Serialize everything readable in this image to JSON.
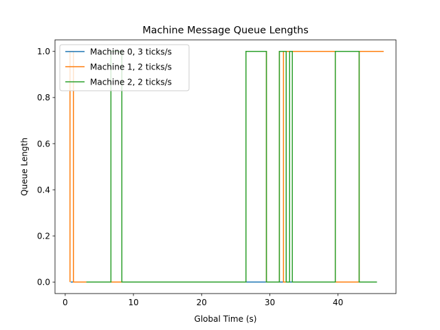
{
  "chart_data": {
    "type": "line",
    "step": true,
    "title": "Machine Message Queue Lengths",
    "xlabel": "Global Time (s)",
    "ylabel": "Queue Length",
    "xlim": [
      -1.5,
      48.5
    ],
    "ylim": [
      -0.05,
      1.05
    ],
    "xticks": [
      0,
      10,
      20,
      30,
      40
    ],
    "yticks": [
      0.0,
      0.2,
      0.4,
      0.6,
      0.8,
      1.0
    ],
    "xtick_labels": [
      "0",
      "10",
      "20",
      "30",
      "40"
    ],
    "ytick_labels": [
      "0.0",
      "0.2",
      "0.4",
      "0.6",
      "0.8",
      "1.0"
    ],
    "grid": false,
    "legend_position": "upper left",
    "series": [
      {
        "name": "Machine 0, 3 ticks/s",
        "color": "#1f77b4",
        "x": [
          0.8,
          45.7
        ],
        "y": [
          0,
          0
        ]
      },
      {
        "name": "Machine 1, 2 ticks/s",
        "color": "#ff7f0e",
        "x": [
          0.7,
          0.7,
          1.2,
          1.2,
          46.7
        ],
        "y": [
          0,
          1,
          1,
          0,
          0
        ],
        "segments": [
          {
            "x": [
              0.7,
              0.7,
              1.2,
              1.2,
              26.5,
              26.5,
              29.5,
              29.5,
              31.4,
              31.4,
              32.0,
              32.0,
              32.4,
              32.4,
              39.6,
              39.6,
              43.1,
              43.1,
              46.7
            ],
            "y": [
              0,
              1,
              1,
              0,
              0,
              1,
              1,
              0,
              0,
              1,
              1,
              0,
              0,
              1,
              1,
              0,
              0,
              1,
              1
            ]
          }
        ]
      },
      {
        "name": "Machine 2, 2 ticks/s",
        "color": "#2ca02c",
        "x": [
          3.1,
          6.7,
          6.7,
          8.3,
          8.3,
          26.5,
          26.5,
          29.5,
          29.5,
          31.4,
          31.4,
          32.4,
          32.4,
          32.9,
          32.9,
          33.3,
          33.3,
          39.6,
          39.6,
          43.1,
          43.1,
          45.7
        ],
        "y": [
          0,
          0,
          1,
          1,
          0,
          0,
          1,
          1,
          0,
          0,
          1,
          1,
          0,
          0,
          1,
          1,
          0,
          0,
          1,
          1,
          0,
          0
        ]
      }
    ]
  }
}
